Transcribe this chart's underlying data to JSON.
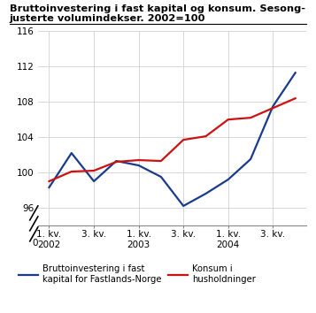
{
  "title_line1": "Bruttoinvestering i fast kapital og konsum. Sesong-",
  "title_line2": "justerte volumindekser. 2002=100",
  "x_labels": [
    "1. kv.\n2002",
    "3. kv.",
    "1. kv.\n2003",
    "3. kv.",
    "1. kv.\n2004",
    "3. kv."
  ],
  "x_tick_pos": [
    0,
    2,
    4,
    6,
    8,
    10
  ],
  "blue_x": [
    0,
    1,
    2,
    3,
    4,
    5,
    6,
    7,
    8,
    9,
    10,
    11
  ],
  "blue_y": [
    98.3,
    102.2,
    99.0,
    101.3,
    100.8,
    99.5,
    96.2,
    97.6,
    99.2,
    101.5,
    107.5,
    111.3
  ],
  "red_x": [
    0,
    1,
    2,
    3,
    4,
    5,
    6,
    7,
    8,
    9,
    10,
    11
  ],
  "red_y": [
    99.0,
    100.1,
    100.2,
    101.2,
    101.4,
    101.3,
    103.7,
    104.1,
    106.0,
    106.2,
    107.3,
    108.4
  ],
  "blue_color": "#1a3a8c",
  "red_color": "#cc1111",
  "ylim": [
    94.0,
    116.0
  ],
  "yticks": [
    96,
    100,
    104,
    108,
    112,
    116
  ],
  "grid_color": "#d0d0d0",
  "bg_color": "#ffffff",
  "legend_blue": "Bruttoinvestering i fast\nkapital for Fastlands-Norge",
  "legend_red": "Konsum i\nhusholdninger"
}
